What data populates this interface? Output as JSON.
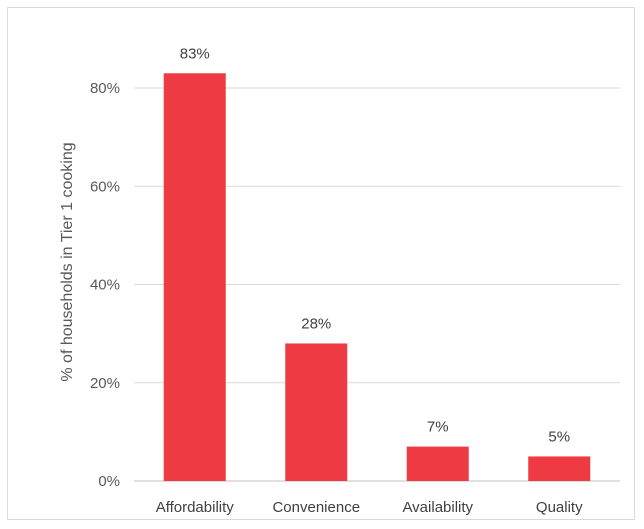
{
  "chart_data": {
    "type": "bar",
    "title": "",
    "xlabel": "",
    "ylabel": "% of households in Tier 1 cooking",
    "categories": [
      "Affordability",
      "Convenience",
      "Availability",
      "Quality"
    ],
    "values": [
      83,
      28,
      7,
      5
    ],
    "data_labels": [
      "83%",
      "28%",
      "7%",
      "5%"
    ],
    "ylim": [
      0,
      80
    ],
    "yticks": [
      0,
      20,
      40,
      60,
      80
    ],
    "ytick_labels": [
      "0%",
      "20%",
      "40%",
      "60%",
      "80%"
    ],
    "bar_color": "#ee3a43",
    "grid": true,
    "legend": "none"
  }
}
